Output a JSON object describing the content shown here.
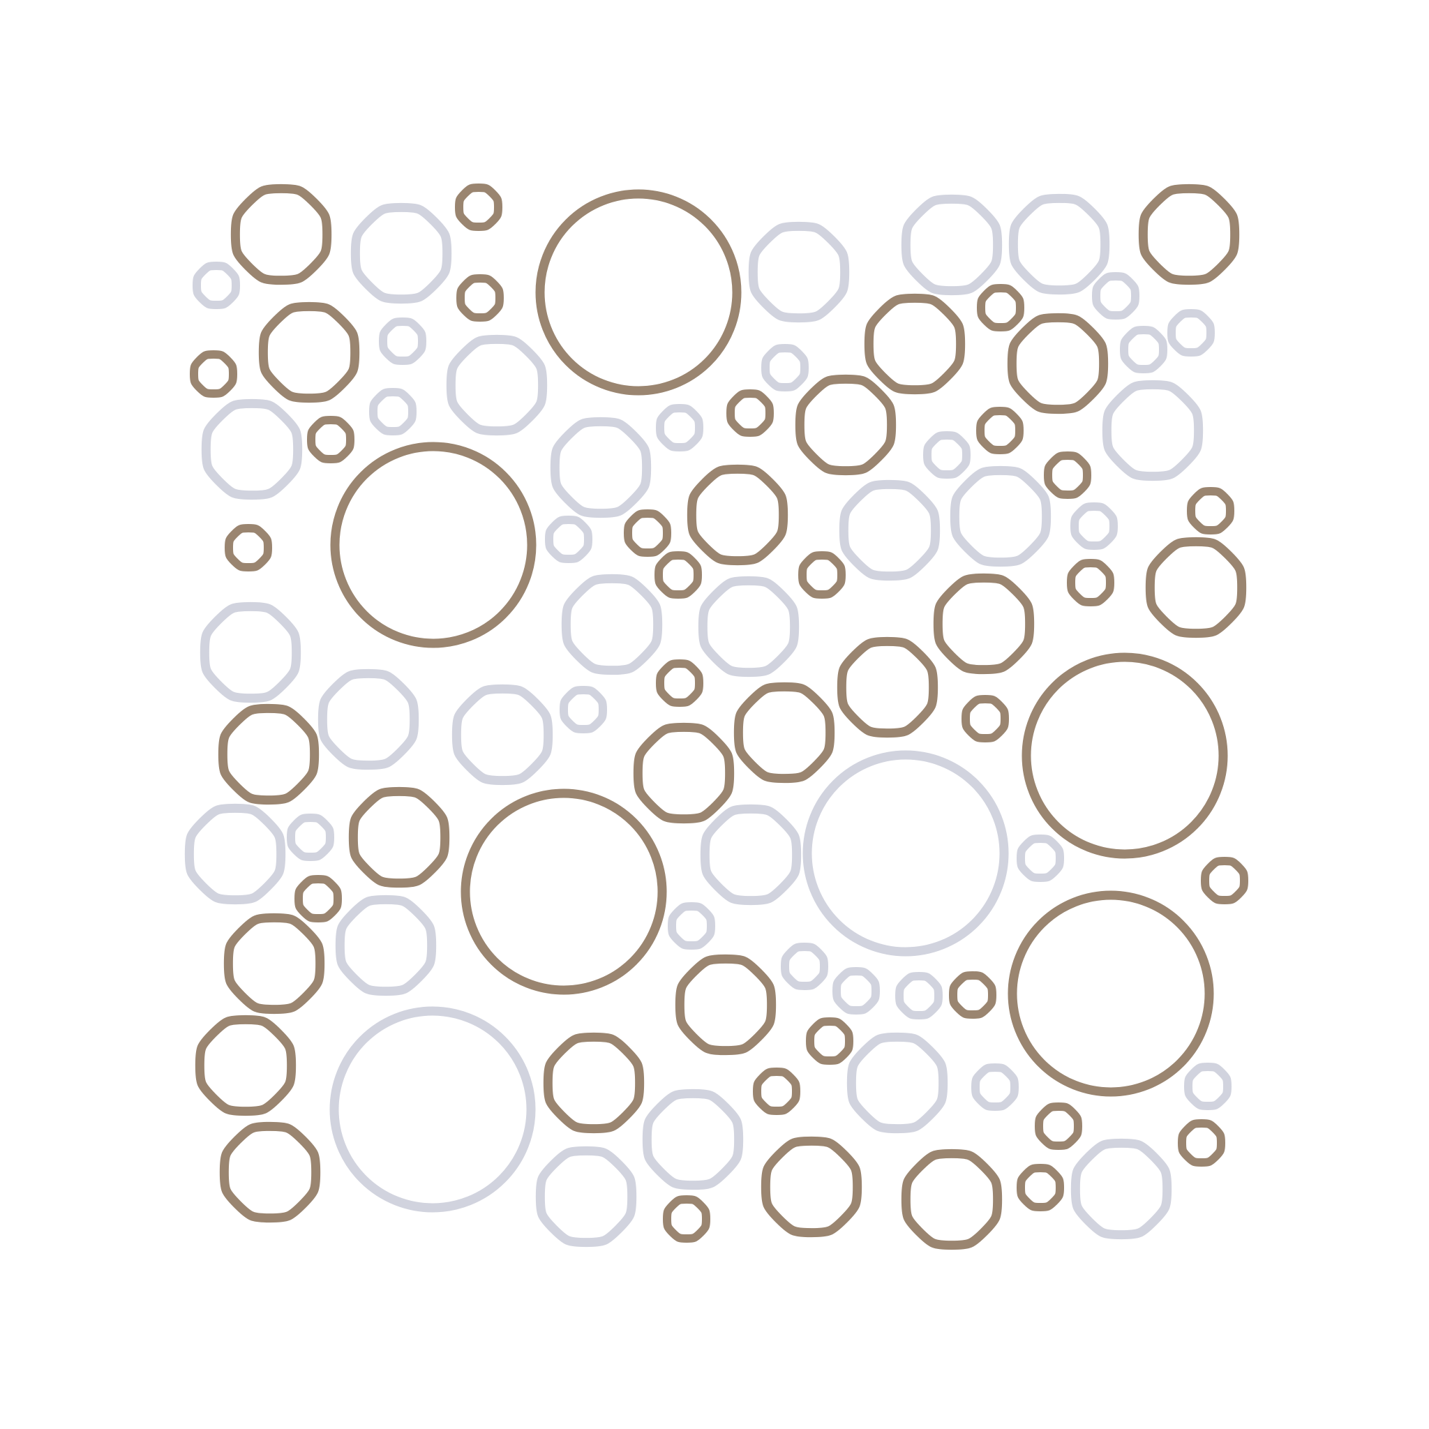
{
  "palette": {
    "background": "#ffffff",
    "brown": "#9a8570",
    "gray": "#d1d3de"
  },
  "pattern": {
    "kind": "circle-packing",
    "ring_count": 101,
    "tones": [
      "brown",
      "gray"
    ]
  }
}
